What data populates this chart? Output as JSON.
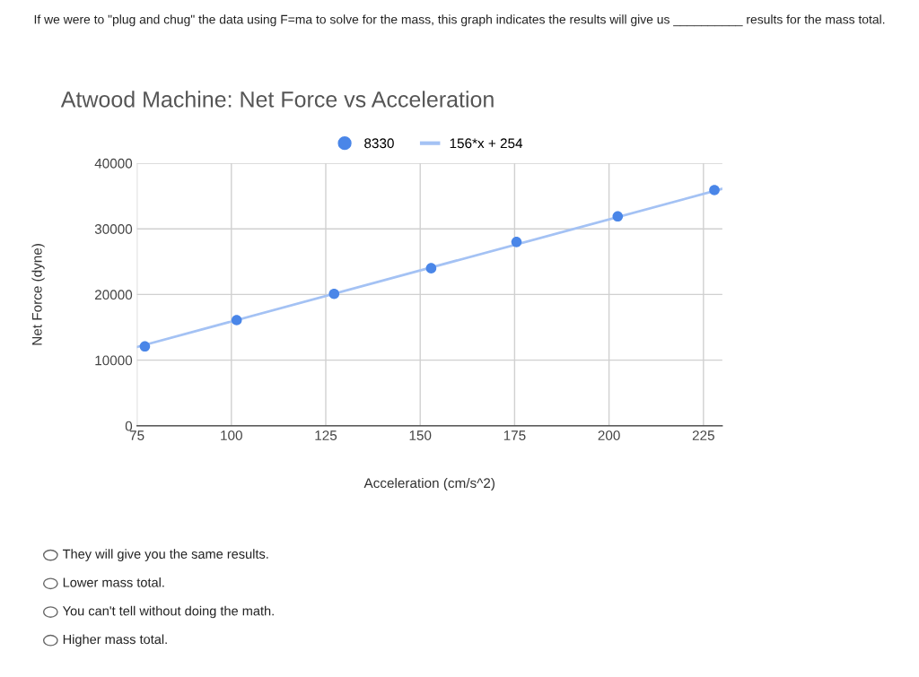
{
  "chart_data": {
    "type": "scatter",
    "title": "Atwood Machine: Net Force vs Acceleration",
    "xlabel": "Acceleration (cm/s^2)",
    "ylabel": "Net Force (dyne)",
    "series": [
      {
        "name": "8330",
        "color": "#4a86e8",
        "marker": "circle",
        "x": [
          77.1,
          101.4,
          127.2,
          152.9,
          175.5,
          202.3,
          227.9
        ],
        "values": [
          12100,
          16100,
          20100,
          24000,
          28000,
          31900,
          35900
        ]
      },
      {
        "name": "156*x + 254",
        "type": "line",
        "marker": "none",
        "color": "#a4c2f4",
        "x": [
          75,
          230
        ],
        "values": [
          12000,
          36100
        ]
      }
    ],
    "xlim": [
      75,
      230
    ],
    "xticks": [
      75,
      100,
      125,
      150,
      175,
      200,
      225
    ],
    "ylim": [
      0,
      40000
    ],
    "yticks": [
      0,
      10000,
      20000,
      30000,
      40000
    ],
    "grid": true,
    "legend": "top",
    "annotations": [
      "If we were to \"plug and chug\" the data using F=ma to solve for the mass, this graph indicates the results will give us __________ results for the mass total.",
      "They will give you the same results.",
      "Lower mass total.",
      "You can't tell without doing the math.",
      "Higher mass total."
    ]
  }
}
